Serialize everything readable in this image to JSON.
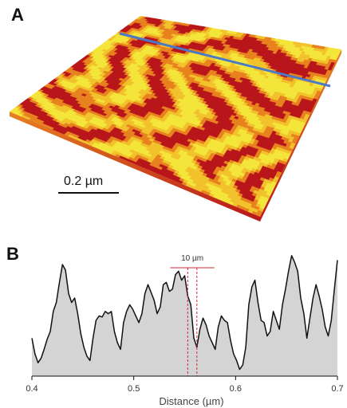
{
  "figure": {
    "panel_a_label": "A",
    "panel_b_label": "B",
    "scale_bar_label": "0.2 µm",
    "annotation_label": "10 µm",
    "colors": {
      "surface_low": "#b8161a",
      "surface_mid": "#e8821f",
      "surface_high": "#f4e53a",
      "scan_line": "#4a79c8",
      "profile_fill": "#d4d4d4",
      "profile_line": "#111111",
      "annotation": "#d0293a"
    }
  },
  "chart_data": {
    "type": "area",
    "title": "",
    "xlabel": "Distance (µm)",
    "ylabel": "",
    "xlim": [
      0.4,
      0.7
    ],
    "xticks": [
      0.4,
      0.5,
      0.6,
      0.7
    ],
    "xtick_labels": [
      "0.4",
      "0.5",
      "0.6",
      "0.7"
    ],
    "grid": false,
    "annotation": {
      "label": "10 µm",
      "x_start": 0.553,
      "x_end": 0.562
    },
    "x": [
      0.4,
      0.403,
      0.406,
      0.409,
      0.412,
      0.415,
      0.418,
      0.421,
      0.424,
      0.427,
      0.43,
      0.433,
      0.436,
      0.439,
      0.442,
      0.445,
      0.448,
      0.451,
      0.454,
      0.457,
      0.46,
      0.463,
      0.466,
      0.469,
      0.472,
      0.475,
      0.478,
      0.481,
      0.484,
      0.487,
      0.49,
      0.493,
      0.496,
      0.499,
      0.502,
      0.505,
      0.508,
      0.511,
      0.514,
      0.517,
      0.52,
      0.523,
      0.526,
      0.529,
      0.532,
      0.535,
      0.538,
      0.541,
      0.544,
      0.547,
      0.55,
      0.553,
      0.556,
      0.559,
      0.562,
      0.565,
      0.568,
      0.571,
      0.574,
      0.577,
      0.58,
      0.583,
      0.586,
      0.589,
      0.592,
      0.595,
      0.598,
      0.601,
      0.604,
      0.607,
      0.61,
      0.613,
      0.616,
      0.619,
      0.622,
      0.625,
      0.628,
      0.631,
      0.634,
      0.637,
      0.64,
      0.643,
      0.646,
      0.649,
      0.652,
      0.655,
      0.658,
      0.661,
      0.664,
      0.667,
      0.67,
      0.673,
      0.676,
      0.679,
      0.682,
      0.685,
      0.688,
      0.691,
      0.694,
      0.697,
      0.7
    ],
    "y": [
      0.34,
      0.2,
      0.12,
      0.16,
      0.24,
      0.33,
      0.4,
      0.58,
      0.66,
      0.84,
      1.0,
      0.95,
      0.74,
      0.66,
      0.7,
      0.56,
      0.38,
      0.26,
      0.18,
      0.14,
      0.34,
      0.5,
      0.54,
      0.53,
      0.58,
      0.56,
      0.58,
      0.4,
      0.3,
      0.24,
      0.48,
      0.58,
      0.64,
      0.6,
      0.54,
      0.48,
      0.56,
      0.74,
      0.82,
      0.75,
      0.68,
      0.56,
      0.62,
      0.82,
      0.84,
      0.76,
      0.78,
      0.91,
      0.94,
      0.86,
      0.9,
      0.72,
      0.64,
      0.34,
      0.26,
      0.42,
      0.52,
      0.46,
      0.36,
      0.3,
      0.24,
      0.44,
      0.54,
      0.5,
      0.48,
      0.32,
      0.2,
      0.14,
      0.06,
      0.1,
      0.26,
      0.64,
      0.8,
      0.86,
      0.66,
      0.5,
      0.48,
      0.36,
      0.4,
      0.58,
      0.5,
      0.42,
      0.64,
      0.78,
      0.94,
      1.08,
      1.02,
      0.94,
      0.7,
      0.56,
      0.34,
      0.52,
      0.7,
      0.82,
      0.72,
      0.6,
      0.44,
      0.36,
      0.5,
      0.78,
      1.04
    ]
  }
}
